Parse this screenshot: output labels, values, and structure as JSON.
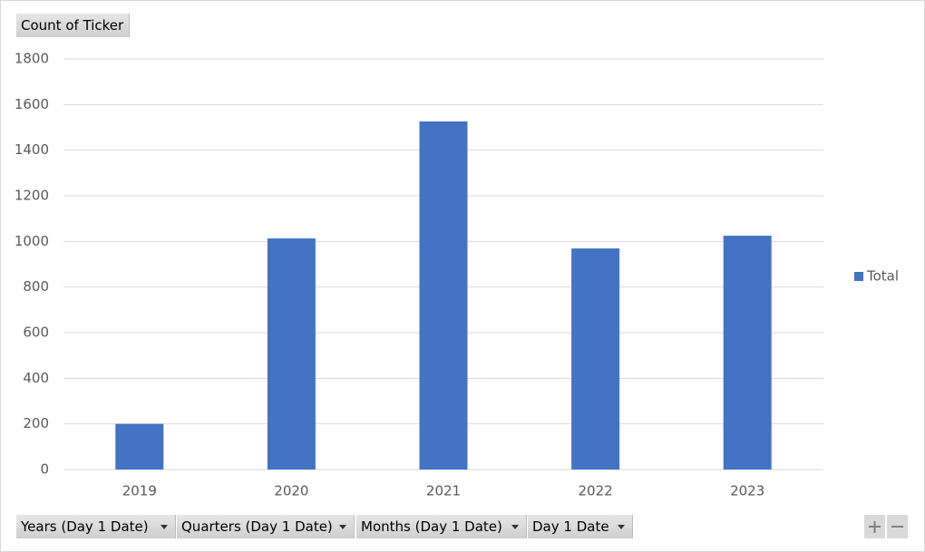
{
  "chart_data": {
    "type": "bar",
    "value_field": "Count of Ticker",
    "axis_fields": [
      "Years (Day 1 Date)",
      "Quarters (Day 1 Date)",
      "Months (Day 1 Date)",
      "Day 1 Date"
    ],
    "categories": [
      "2019",
      "2020",
      "2021",
      "2022",
      "2023"
    ],
    "series": [
      {
        "name": "Total",
        "color": "#4472c4",
        "values": [
          200,
          1013,
          1526,
          969,
          1025
        ]
      }
    ],
    "ylim": [
      0,
      1800
    ],
    "yticks": [
      0,
      200,
      400,
      600,
      800,
      1000,
      1200,
      1400,
      1600,
      1800
    ],
    "grid": true,
    "legend": "right"
  }
}
